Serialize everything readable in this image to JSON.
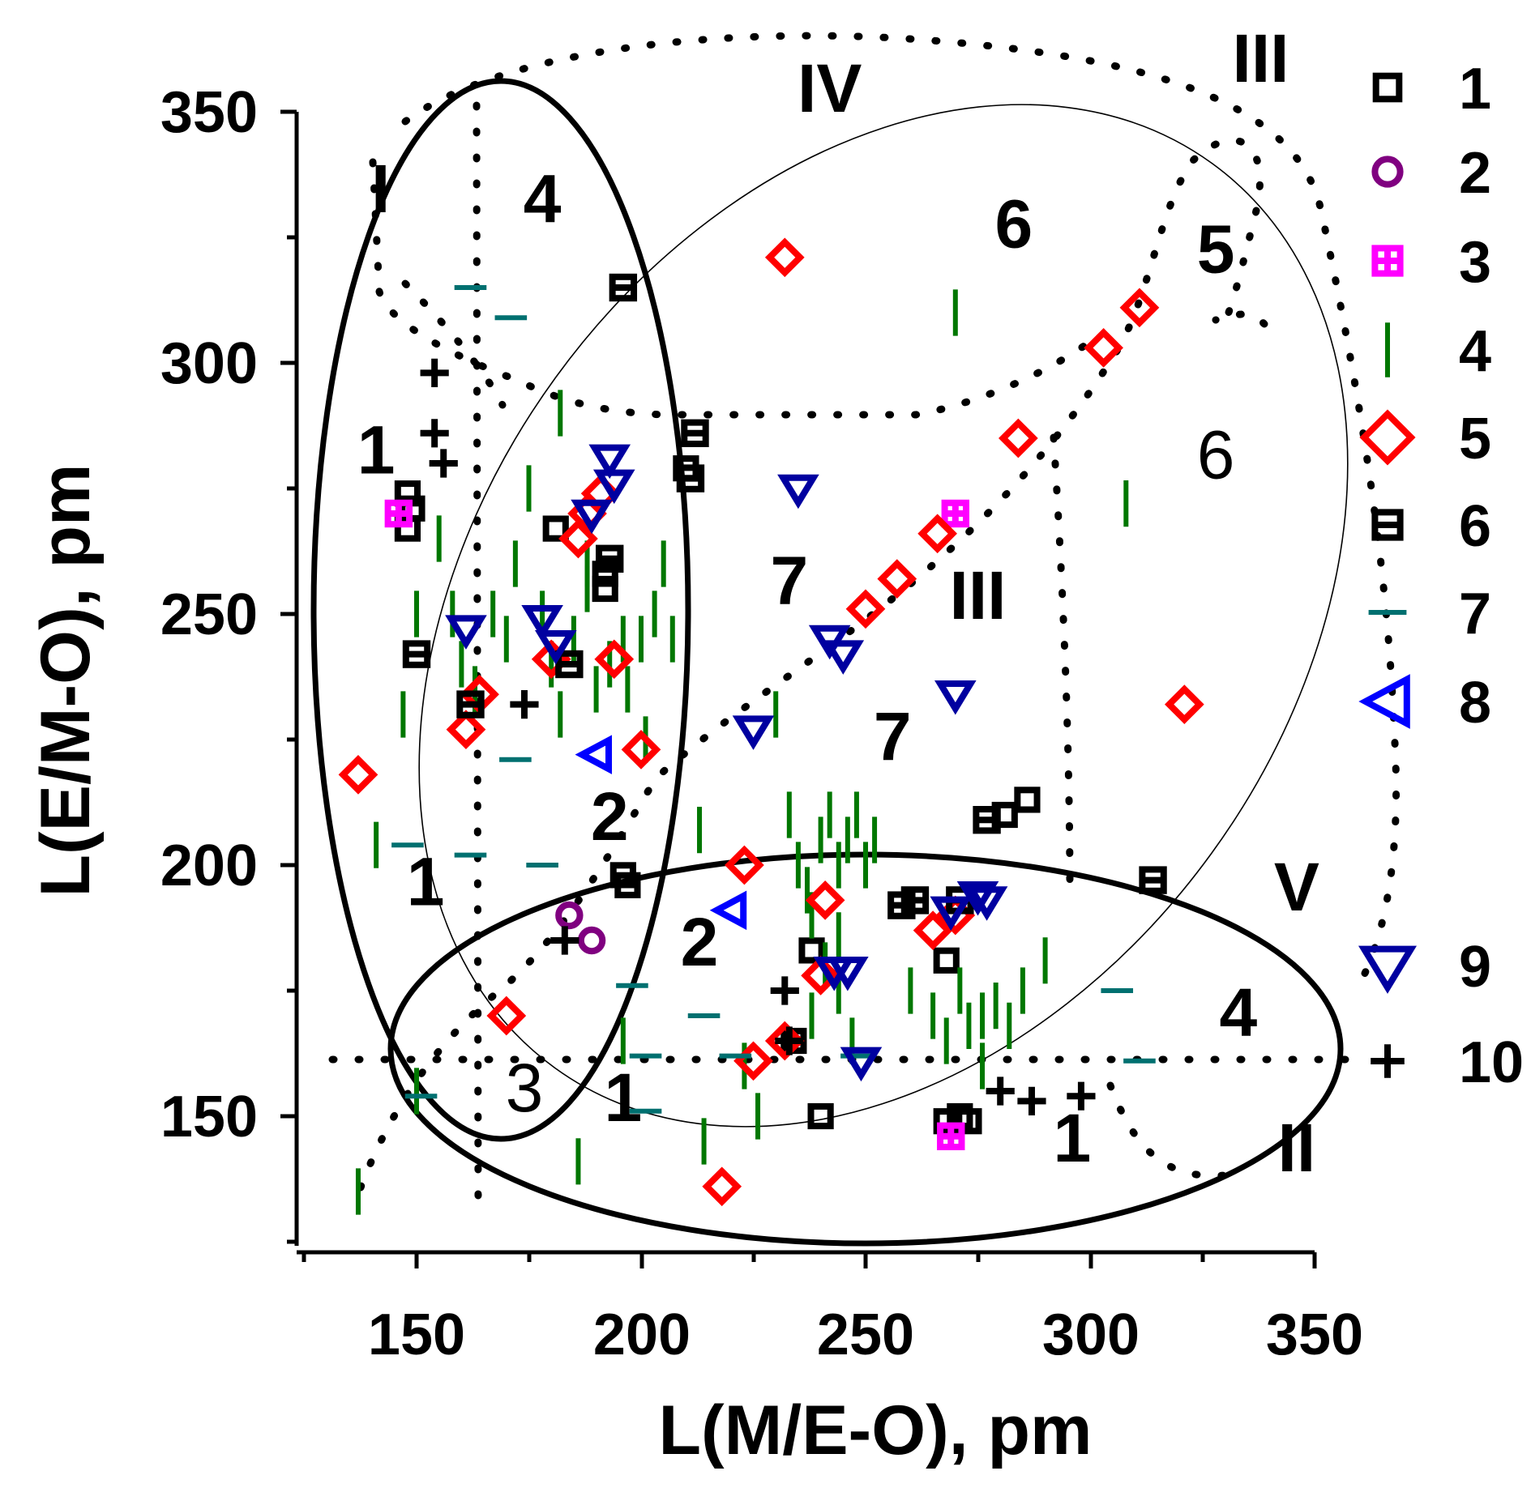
{
  "chart_data": {
    "type": "scatter",
    "title": "",
    "xlabel": "L(M/E-O), pm",
    "ylabel": "L(E/M-O), pm",
    "xlim": [
      123,
      350
    ],
    "ylim": [
      125,
      350
    ],
    "xticks": [
      "150",
      "200",
      "250",
      "300",
      "350"
    ],
    "yticks": [
      "150",
      "200",
      "250",
      "300",
      "350"
    ],
    "legend": [
      {
        "name": "1",
        "marker": "square",
        "color": "#000000"
      },
      {
        "name": "2",
        "marker": "circle",
        "color": "#800080"
      },
      {
        "name": "3",
        "marker": "square-plus",
        "color": "#ff00ff"
      },
      {
        "name": "4",
        "marker": "vline",
        "color": "#007700"
      },
      {
        "name": "5",
        "marker": "diamond",
        "color": "#ff0000"
      },
      {
        "name": "6",
        "marker": "square-minus",
        "color": "#000000"
      },
      {
        "name": "7",
        "marker": "hline",
        "color": "#007070"
      },
      {
        "name": "8",
        "marker": "triangle-left",
        "color": "#0000ff"
      },
      {
        "name": "9",
        "marker": "triangle-down",
        "color": "#0000a0"
      },
      {
        "name": "10",
        "marker": "plus",
        "color": "#000000"
      }
    ],
    "region_labels": [
      {
        "text": "I",
        "x": 142,
        "y": 330
      },
      {
        "text": "II",
        "x": 346,
        "y": 139
      },
      {
        "text": "III",
        "x": 338,
        "y": 356
      },
      {
        "text": "III",
        "x": 275,
        "y": 249
      },
      {
        "text": "IV",
        "x": 242,
        "y": 350
      },
      {
        "text": "V",
        "x": 346,
        "y": 191
      },
      {
        "text": "1",
        "x": 141,
        "y": 278
      },
      {
        "text": "1",
        "x": 152,
        "y": 192
      },
      {
        "text": "1",
        "x": 196,
        "y": 149
      },
      {
        "text": "1",
        "x": 296,
        "y": 141
      },
      {
        "text": "2",
        "x": 193,
        "y": 205
      },
      {
        "text": "2",
        "x": 213,
        "y": 180
      },
      {
        "text": "3",
        "x": 174,
        "y": 151
      },
      {
        "text": "4",
        "x": 178,
        "y": 328
      },
      {
        "text": "4",
        "x": 333,
        "y": 166
      },
      {
        "text": "5",
        "x": 328,
        "y": 318
      },
      {
        "text": "6",
        "x": 283,
        "y": 323
      },
      {
        "text": "6",
        "x": 328,
        "y": 277
      },
      {
        "text": "7",
        "x": 233,
        "y": 252
      },
      {
        "text": "7",
        "x": 256,
        "y": 221
      }
    ],
    "series": [
      {
        "name": "1",
        "points": [
          [
            148,
            274
          ],
          [
            149,
            271
          ],
          [
            148,
            267
          ],
          [
            181,
            267
          ],
          [
            192,
            258
          ],
          [
            192,
            255
          ],
          [
            196,
            198
          ],
          [
            197,
            196
          ],
          [
            238,
            183
          ],
          [
            268,
            181
          ],
          [
            234,
            165
          ],
          [
            268,
            149
          ],
          [
            271,
            150
          ],
          [
            273,
            149
          ],
          [
            240,
            150
          ],
          [
            281,
            210
          ],
          [
            286,
            213
          ],
          [
            210,
            279
          ]
        ]
      },
      {
        "name": "2",
        "points": [
          [
            184,
            190
          ],
          [
            189,
            185
          ]
        ]
      },
      {
        "name": "3",
        "points": [
          [
            146,
            270
          ],
          [
            270,
            270
          ],
          [
            269,
            146
          ]
        ]
      },
      {
        "name": "4",
        "points": [
          [
            141,
            204
          ],
          [
            147,
            230
          ],
          [
            150,
            250
          ],
          [
            155,
            265
          ],
          [
            158,
            250
          ],
          [
            160,
            240
          ],
          [
            163,
            235
          ],
          [
            167,
            250
          ],
          [
            170,
            245
          ],
          [
            172,
            260
          ],
          [
            175,
            275
          ],
          [
            178,
            250
          ],
          [
            180,
            240
          ],
          [
            182,
            230
          ],
          [
            185,
            245
          ],
          [
            188,
            260
          ],
          [
            190,
            235
          ],
          [
            193,
            240
          ],
          [
            196,
            245
          ],
          [
            200,
            245
          ],
          [
            203,
            250
          ],
          [
            205,
            260
          ],
          [
            207,
            245
          ],
          [
            182,
            290
          ],
          [
            188,
            255
          ],
          [
            197,
            235
          ],
          [
            201,
            225
          ],
          [
            213,
            207
          ],
          [
            230,
            230
          ],
          [
            233,
            210
          ],
          [
            235,
            200
          ],
          [
            237,
            195
          ],
          [
            238,
            190
          ],
          [
            240,
            205
          ],
          [
            242,
            210
          ],
          [
            244,
            200
          ],
          [
            246,
            205
          ],
          [
            248,
            210
          ],
          [
            250,
            200
          ],
          [
            252,
            205
          ],
          [
            241,
            180
          ],
          [
            244,
            175
          ],
          [
            247,
            165
          ],
          [
            226,
            150
          ],
          [
            214,
            145
          ],
          [
            273,
            168
          ],
          [
            276,
            170
          ],
          [
            279,
            172
          ],
          [
            282,
            168
          ],
          [
            285,
            175
          ],
          [
            290,
            181
          ],
          [
            270,
            310
          ],
          [
            308,
            272
          ],
          [
            137,
            135
          ],
          [
            186,
            141
          ],
          [
            196,
            165
          ],
          [
            223,
            160
          ],
          [
            238,
            170
          ],
          [
            244,
            186
          ],
          [
            260,
            175
          ],
          [
            265,
            170
          ],
          [
            268,
            165
          ],
          [
            271,
            175
          ],
          [
            276,
            160
          ],
          [
            150,
            155
          ]
        ]
      },
      {
        "name": "5",
        "points": [
          [
            137,
            218
          ],
          [
            161,
            227
          ],
          [
            164,
            234
          ],
          [
            170,
            170
          ],
          [
            180,
            241
          ],
          [
            186,
            265
          ],
          [
            188,
            270
          ],
          [
            191,
            274
          ],
          [
            194,
            241
          ],
          [
            200,
            223
          ],
          [
            218,
            136
          ],
          [
            223,
            200
          ],
          [
            225,
            161
          ],
          [
            232,
            165
          ],
          [
            232,
            321
          ],
          [
            240,
            178
          ],
          [
            241,
            193
          ],
          [
            250,
            251
          ],
          [
            257,
            257
          ],
          [
            265,
            187
          ],
          [
            266,
            266
          ],
          [
            270,
            190
          ],
          [
            284,
            285
          ],
          [
            303,
            303
          ],
          [
            311,
            311
          ],
          [
            321,
            232
          ]
        ]
      },
      {
        "name": "6",
        "points": [
          [
            150,
            242
          ],
          [
            162,
            232
          ],
          [
            184,
            240
          ],
          [
            193,
            261
          ],
          [
            196,
            315
          ],
          [
            212,
            286
          ],
          [
            211,
            277
          ],
          [
            258,
            192
          ],
          [
            261,
            193
          ],
          [
            271,
            193
          ],
          [
            277,
            209
          ],
          [
            314,
            197
          ]
        ]
      },
      {
        "name": "7",
        "points": [
          [
            162,
            315
          ],
          [
            171,
            309
          ],
          [
            148,
            204
          ],
          [
            162,
            202
          ],
          [
            172,
            221
          ],
          [
            178,
            200
          ],
          [
            198,
            176
          ],
          [
            201,
            162
          ],
          [
            201,
            151
          ],
          [
            214,
            170
          ],
          [
            221,
            162
          ],
          [
            248,
            162
          ],
          [
            306,
            175
          ],
          [
            311,
            161
          ],
          [
            151,
            154
          ]
        ]
      },
      {
        "name": "8",
        "points": [
          [
            190,
            222
          ],
          [
            220,
            191
          ]
        ]
      },
      {
        "name": "9",
        "points": [
          [
            161,
            247
          ],
          [
            178,
            249
          ],
          [
            181,
            244
          ],
          [
            189,
            270
          ],
          [
            193,
            281
          ],
          [
            194,
            276
          ],
          [
            225,
            227
          ],
          [
            235,
            275
          ],
          [
            242,
            245
          ],
          [
            245,
            242
          ],
          [
            270,
            234
          ],
          [
            269,
            191
          ],
          [
            275,
            194
          ],
          [
            277,
            193
          ],
          [
            243,
            179
          ],
          [
            246,
            179
          ],
          [
            249,
            161
          ]
        ]
      },
      {
        "name": "10",
        "points": [
          [
            154,
            298
          ],
          [
            154,
            286
          ],
          [
            156,
            280
          ],
          [
            174,
            232
          ],
          [
            183,
            185
          ],
          [
            232,
            175
          ],
          [
            233,
            165
          ],
          [
            280,
            155
          ],
          [
            287,
            153
          ],
          [
            298,
            154
          ]
        ]
      }
    ]
  }
}
